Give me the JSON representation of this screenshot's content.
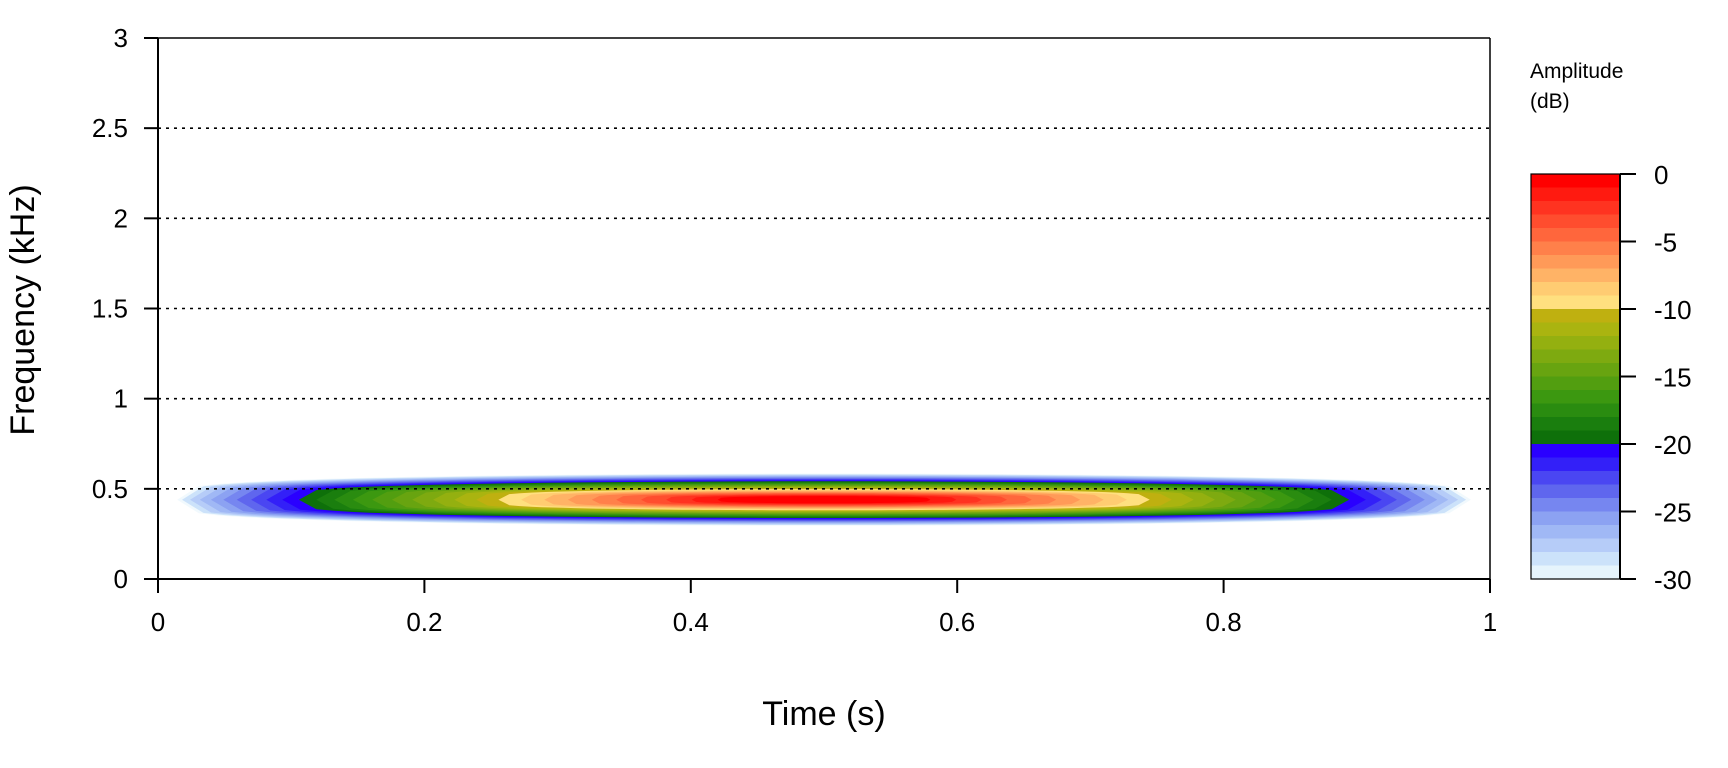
{
  "chart_data": {
    "type": "heatmap",
    "title": "",
    "xlabel": "Time (s)",
    "ylabel": "Frequency (kHz)",
    "xlim": [
      0,
      1
    ],
    "ylim": [
      0,
      3
    ],
    "x_ticks": [
      0,
      0.2,
      0.4,
      0.6,
      0.8,
      1
    ],
    "x_tick_labels": [
      "0",
      "0.2",
      "0.4",
      "0.6",
      "0.8",
      "1"
    ],
    "y_ticks": [
      0,
      0.5,
      1,
      1.5,
      2,
      2.5,
      3
    ],
    "y_tick_labels": [
      "0",
      "0.5",
      "1",
      "1.5",
      "2",
      "2.5",
      "3"
    ],
    "grid": "horizontal dotted at y ticks",
    "signal": {
      "description_of_values": "tone centred near 0.44 kHz spanning roughly 0.01 to 0.99 s; peak amplitude 0 dB near 0.5 s",
      "center_frequency_khz": 0.44,
      "time_start_s": 0.01,
      "time_end_s": 0.99,
      "peak_db": 0,
      "peak_time_s": 0.5
    },
    "colorbar": {
      "title_line1": "Amplitude",
      "title_line2": "(dB)",
      "range_db": [
        -30,
        0
      ],
      "ticks": [
        0,
        -5,
        -10,
        -15,
        -20,
        -25,
        -30
      ],
      "tick_labels": [
        "0",
        "-5",
        "-10",
        "-15",
        "-20",
        "-25",
        "-30"
      ],
      "colors_top_to_bottom": [
        "#FF0000",
        "#FF1A10",
        "#FF3320",
        "#FF4D2E",
        "#FF663C",
        "#FF804A",
        "#FF9A58",
        "#FFB366",
        "#FFCC72",
        "#FFE07F",
        "#BFB010",
        "#AAB410",
        "#94B010",
        "#7EAA10",
        "#68A410",
        "#529E10",
        "#3C9810",
        "#2A8C10",
        "#1A7E0E",
        "#0E700A",
        "#2A00FF",
        "#3320F8",
        "#4A46F2",
        "#5F66EE",
        "#7686F0",
        "#8CA2F2",
        "#A0B8F5",
        "#B6CCF8",
        "#CCE2FA",
        "#E6F4FC"
      ]
    }
  }
}
